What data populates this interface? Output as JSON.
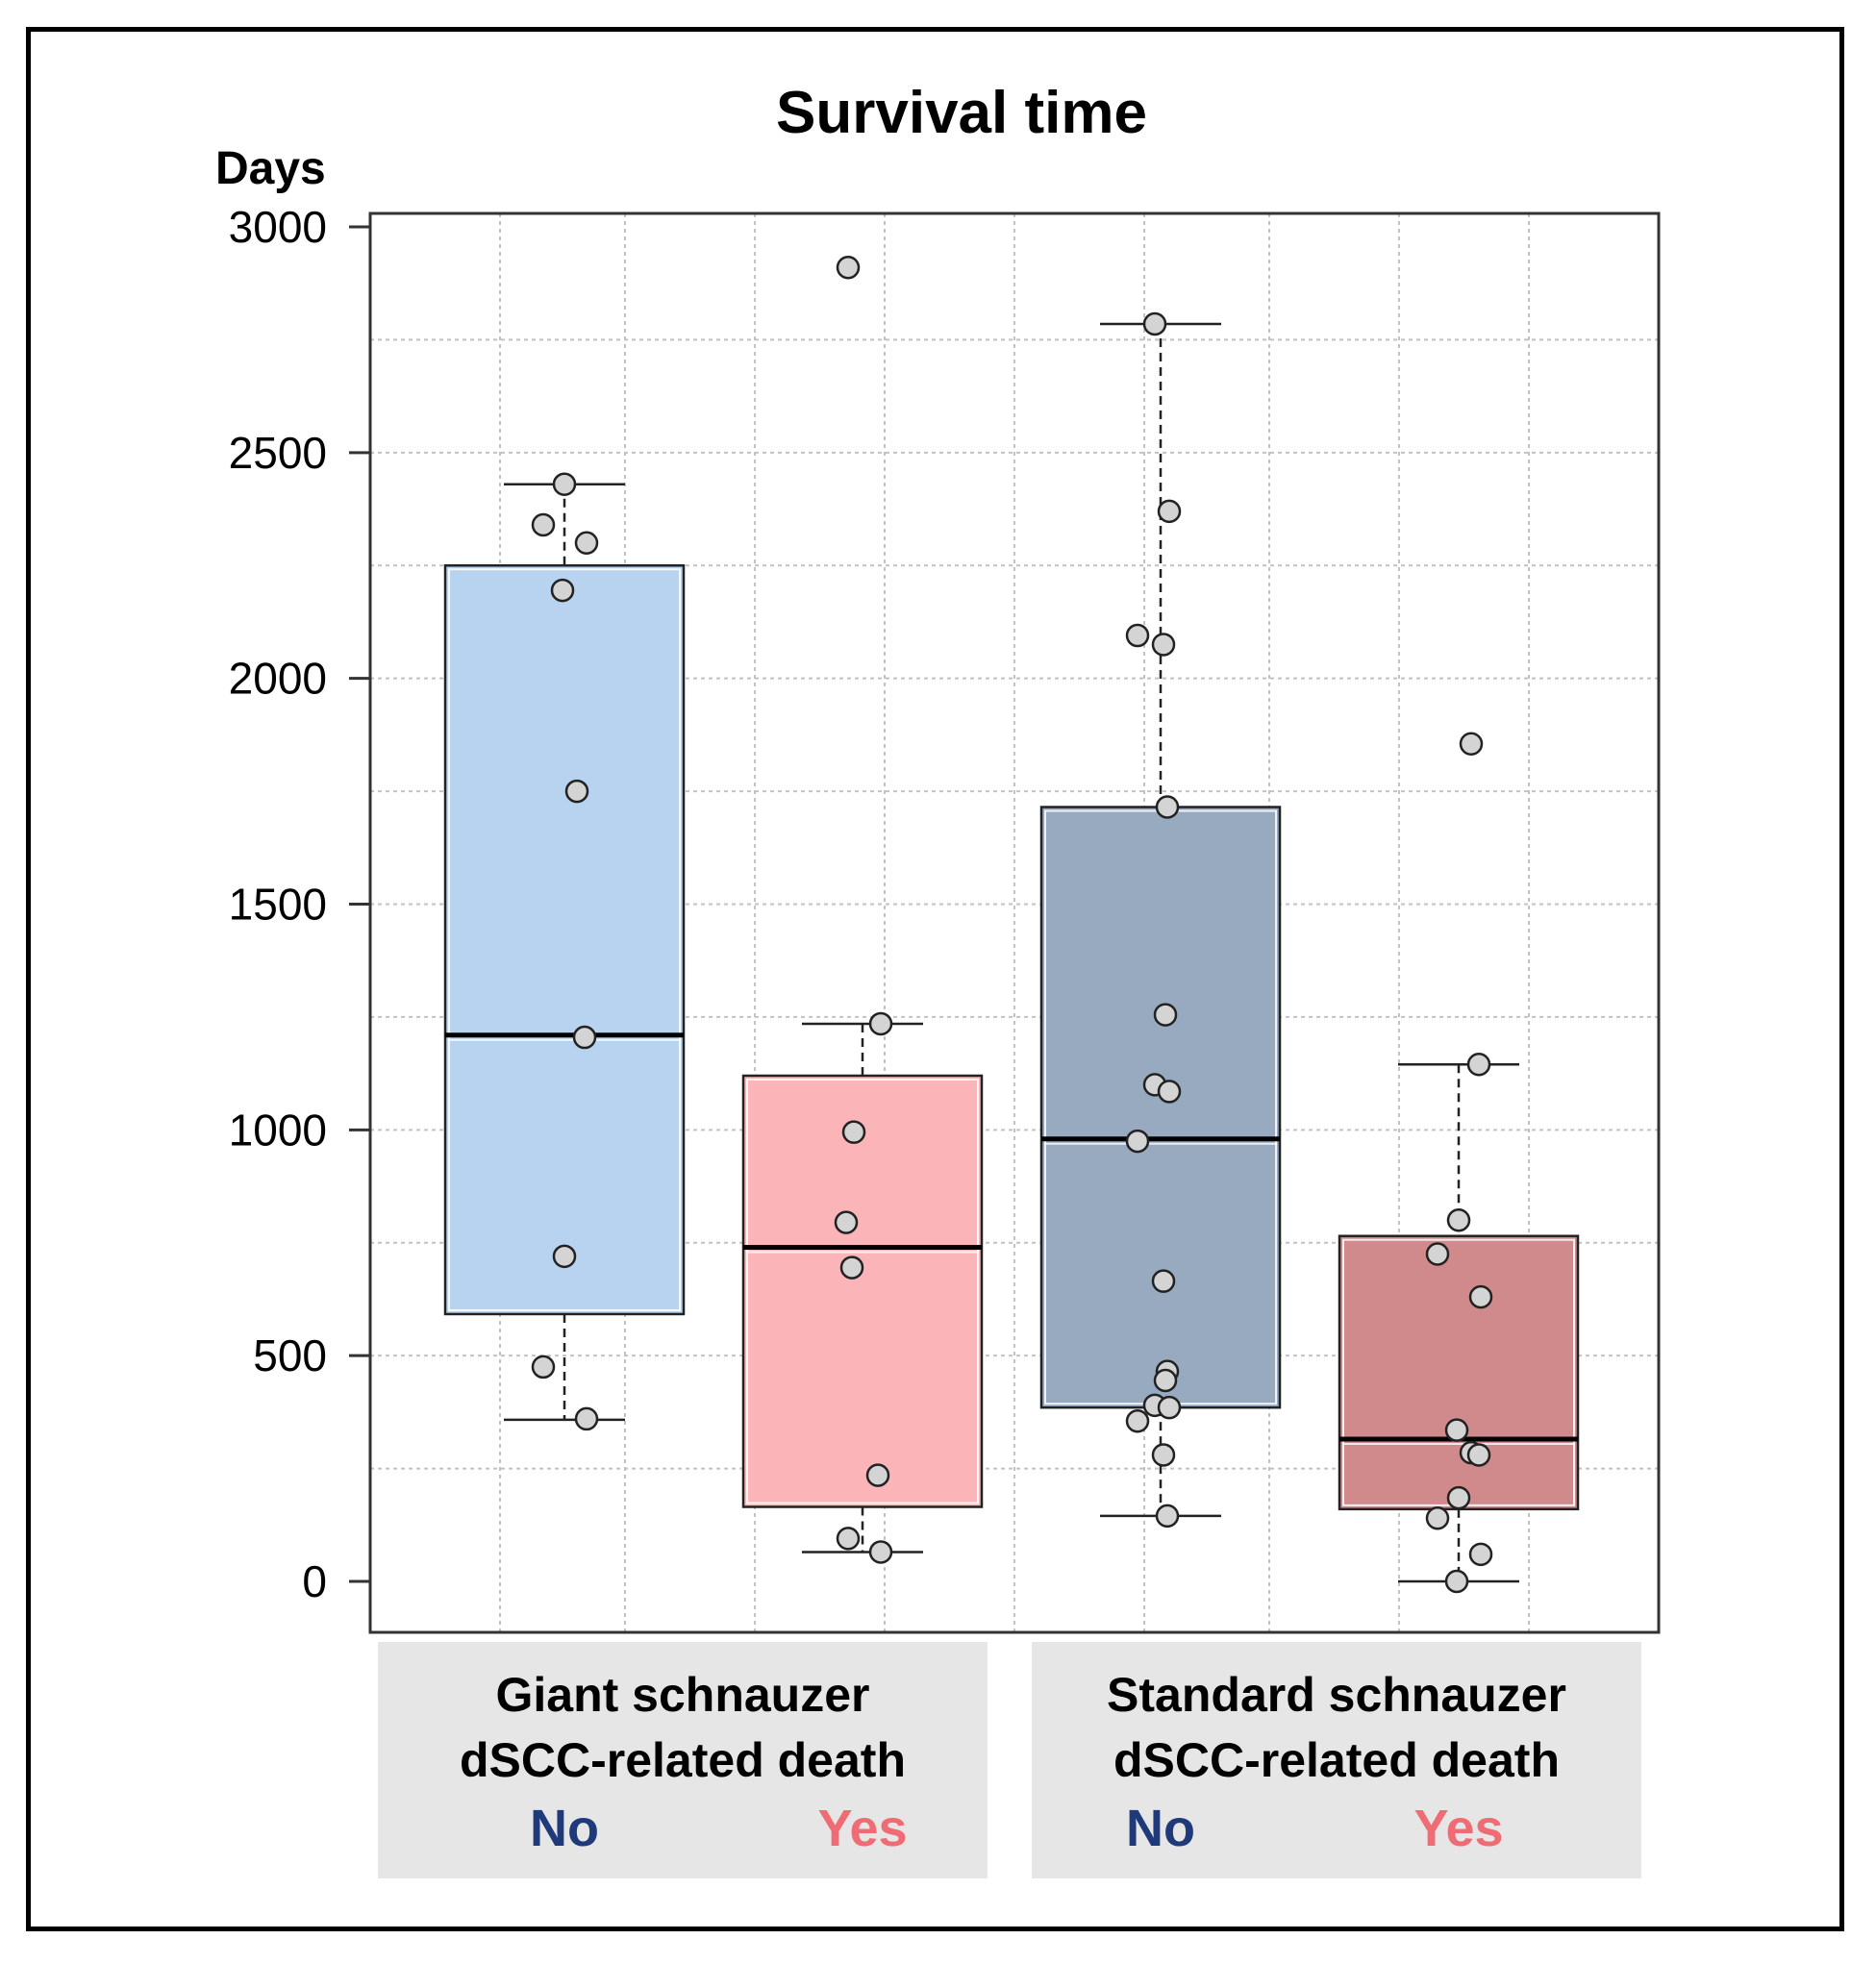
{
  "chart_data": {
    "type": "box",
    "title": "Survival time",
    "ylabel": "Days",
    "ylim": [
      -110,
      3035
    ],
    "yticks": [
      0,
      500,
      1000,
      1500,
      2000,
      2500,
      3000
    ],
    "ytick_labels": [
      "0",
      "500",
      "1000",
      "1500",
      "2000",
      "2500",
      "3000"
    ],
    "grid": true,
    "groups": [
      {
        "label_line1": "Giant schnauzer",
        "label_line2": "dSCC-related death",
        "boxes": [
          {
            "name": "No",
            "color": "#b8d3ef",
            "label_color": "#1f3a7a",
            "whisker_low": 358,
            "q1": 592,
            "median": 1210,
            "q3": 2250,
            "whisker_high": 2430,
            "points": [
              2430,
              2340,
              2300,
              2195,
              1750,
              1205,
              720,
              475,
              360
            ]
          },
          {
            "name": "Yes",
            "color": "#fbb4b8",
            "label_color": "#f06c74",
            "whisker_low": 65,
            "q1": 165,
            "median": 740,
            "q3": 1120,
            "whisker_high": 1235,
            "points": [
              2910,
              1235,
              995,
              795,
              695,
              235,
              95,
              65
            ]
          }
        ]
      },
      {
        "label_line1": "Standard schnauzer",
        "label_line2": "dSCC-related death",
        "boxes": [
          {
            "name": "No",
            "color": "#97aabf",
            "label_color": "#1f3a7a",
            "whisker_low": 145,
            "q1": 385,
            "median": 980,
            "q3": 1715,
            "whisker_high": 2785,
            "points": [
              2785,
              2370,
              2095,
              2075,
              1715,
              1255,
              1100,
              1085,
              975,
              665,
              465,
              445,
              390,
              385,
              355,
              280,
              145
            ]
          },
          {
            "name": "Yes",
            "color": "#d18a8c",
            "label_color": "#f06c74",
            "whisker_low": 0,
            "q1": 160,
            "median": 315,
            "q3": 765,
            "whisker_high": 1145,
            "points": [
              1855,
              1145,
              800,
              725,
              630,
              335,
              285,
              280,
              185,
              140,
              60,
              0
            ]
          }
        ]
      }
    ]
  }
}
